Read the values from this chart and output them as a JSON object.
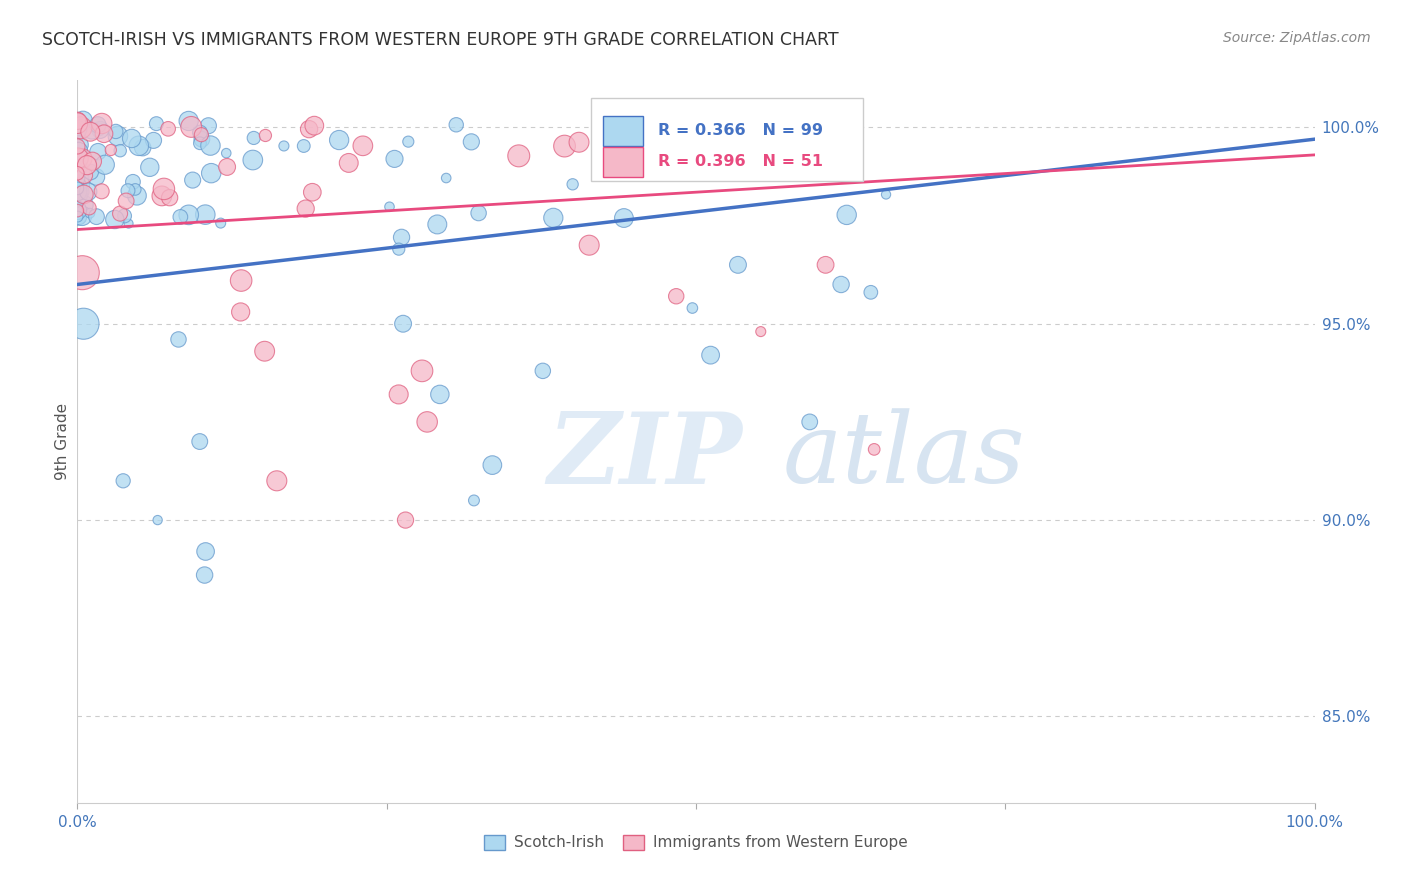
{
  "title": "SCOTCH-IRISH VS IMMIGRANTS FROM WESTERN EUROPE 9TH GRADE CORRELATION CHART",
  "source": "Source: ZipAtlas.com",
  "ylabel": "9th Grade",
  "ytick_labels": [
    "85.0%",
    "90.0%",
    "95.0%",
    "100.0%"
  ],
  "ytick_values": [
    0.85,
    0.9,
    0.95,
    1.0
  ],
  "xlim": [
    0.0,
    1.0
  ],
  "ylim": [
    0.828,
    1.012
  ],
  "legend_label_blue": "Scotch-Irish",
  "legend_label_pink": "Immigrants from Western Europe",
  "r_blue": 0.366,
  "n_blue": 99,
  "r_pink": 0.396,
  "n_pink": 51,
  "color_blue": "#ADD8F0",
  "color_pink": "#F5B8C8",
  "edge_blue": "#6699CC",
  "edge_pink": "#E06080",
  "trendline_blue": "#4472C4",
  "trendline_pink": "#E84A7F",
  "trendline_blue_start": 0.96,
  "trendline_blue_end": 0.997,
  "trendline_pink_start": 0.974,
  "trendline_pink_end": 0.993,
  "watermark_zip": "ZIP",
  "watermark_atlas": "atlas",
  "background_color": "#FFFFFF",
  "grid_color": "#CCCCCC",
  "seed_blue": 42,
  "seed_pink": 17
}
